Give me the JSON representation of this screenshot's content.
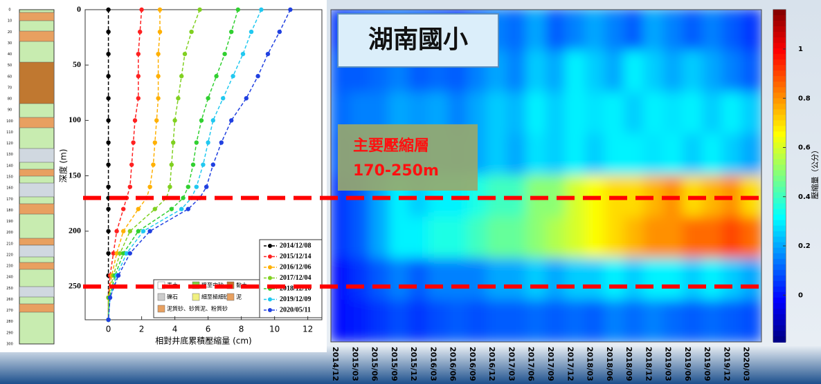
{
  "chart_data": [
    {
      "type": "line",
      "y": [
        0,
        20,
        40,
        60,
        80,
        100,
        120,
        140,
        160,
        170,
        180,
        200,
        220,
        240,
        260,
        280
      ],
      "series": [
        {
          "name": "2014/12/08",
          "color": "#000000",
          "values": [
            0,
            0,
            0,
            0,
            0,
            0,
            0,
            0,
            0,
            0,
            0,
            0,
            0,
            0,
            0,
            0
          ]
        },
        {
          "name": "2015/12/14",
          "color": "#ff2020",
          "values": [
            2.0,
            1.9,
            1.8,
            1.8,
            1.8,
            1.6,
            1.5,
            1.4,
            1.3,
            1.1,
            0.9,
            0.5,
            0.3,
            0.1,
            0,
            0
          ]
        },
        {
          "name": "2016/12/06",
          "color": "#ffb000",
          "values": [
            3.1,
            3.1,
            3.0,
            3.0,
            3.0,
            2.9,
            2.8,
            2.7,
            2.5,
            2.3,
            1.8,
            0.9,
            0.5,
            0.2,
            0,
            0
          ]
        },
        {
          "name": "2017/12/04",
          "color": "#80d020",
          "values": [
            5.5,
            5.0,
            4.6,
            4.4,
            4.2,
            4.0,
            3.9,
            3.8,
            3.7,
            3.5,
            2.8,
            1.3,
            0.7,
            0.3,
            0,
            0
          ]
        },
        {
          "name": "2018/12/10",
          "color": "#30d030",
          "values": [
            7.8,
            7.4,
            7.0,
            6.5,
            6.0,
            5.6,
            5.3,
            5.1,
            4.8,
            4.5,
            3.8,
            1.8,
            0.9,
            0.4,
            0.05,
            0
          ]
        },
        {
          "name": "2019/12/09",
          "color": "#20c8f0",
          "values": [
            9.2,
            8.6,
            8.1,
            7.5,
            6.9,
            6.3,
            6.0,
            5.7,
            5.3,
            5.0,
            4.4,
            2.1,
            1.1,
            0.5,
            0.1,
            0
          ]
        },
        {
          "name": "2020/05/11",
          "color": "#2040e0",
          "values": [
            10.95,
            10.3,
            9.6,
            9.0,
            8.3,
            7.4,
            6.8,
            6.3,
            5.9,
            5.5,
            4.8,
            2.5,
            1.3,
            0.6,
            0.1,
            0
          ]
        }
      ],
      "xlim": [
        -1.4,
        12.85
      ],
      "xticks": [
        0,
        2,
        4,
        6,
        8,
        10,
        12
      ],
      "ylim": [
        0,
        280
      ],
      "yticks": [
        0,
        50,
        100,
        150,
        200,
        250
      ],
      "y_inverted": true,
      "xlabel": "相對井底累積壓縮量 (cm)",
      "ylabel": "深度 (m)",
      "legend": "lower right"
    },
    {
      "type": "heatmap",
      "title": "湖南國小",
      "colormap": "jet",
      "x": [
        "2014/12",
        "2015/03",
        "2015/06",
        "2015/09",
        "2015/12",
        "2016/03",
        "2016/06",
        "2016/09",
        "2016/12",
        "2017/03",
        "2017/06",
        "2017/09",
        "2017/12",
        "2018/03",
        "2018/06",
        "2018/09",
        "2018/12",
        "2019/03",
        "2019/06",
        "2019/09",
        "2019/12",
        "2020/03"
      ],
      "ylim": [
        0,
        300
      ],
      "values": [
        [
          0.05,
          0.08,
          0.1,
          0.12,
          0.1,
          0.08,
          0.05,
          0.1,
          0.15,
          0.12,
          0.2,
          0.1,
          0.15,
          0.2,
          0.15,
          0.1,
          0.2,
          0.15,
          0.1,
          0.15,
          0.1,
          0.05
        ],
        [
          0.1,
          0.1,
          0.12,
          0.15,
          0.1,
          0.12,
          0.1,
          0.15,
          0.2,
          0.15,
          0.25,
          0.2,
          0.3,
          0.25,
          0.2,
          0.3,
          0.25,
          0.2,
          0.25,
          0.2,
          0.15,
          0.1
        ],
        [
          0.12,
          0.15,
          0.15,
          0.2,
          0.18,
          0.2,
          0.15,
          0.2,
          0.25,
          0.22,
          0.3,
          0.25,
          0.3,
          0.28,
          0.3,
          0.25,
          0.3,
          0.28,
          0.3,
          0.25,
          0.3,
          0.25
        ],
        [
          0.1,
          0.12,
          0.15,
          0.2,
          0.15,
          0.2,
          0.18,
          0.2,
          0.25,
          0.2,
          0.28,
          0.25,
          0.3,
          0.25,
          0.3,
          0.3,
          0.28,
          0.3,
          0.25,
          0.3,
          0.25,
          0.2
        ],
        [
          0.05,
          0.1,
          0.2,
          0.3,
          0.25,
          0.3,
          0.3,
          0.35,
          0.4,
          0.4,
          0.5,
          0.5,
          0.6,
          0.65,
          0.7,
          0.7,
          0.75,
          0.8,
          0.7,
          0.75,
          0.8,
          0.7
        ],
        [
          0.05,
          0.1,
          0.2,
          0.3,
          0.3,
          0.35,
          0.35,
          0.4,
          0.45,
          0.45,
          0.5,
          0.55,
          0.6,
          0.65,
          0.7,
          0.75,
          0.8,
          0.8,
          0.85,
          0.85,
          0.9,
          0.85
        ],
        [
          0,
          0.05,
          0.1,
          0.15,
          0.1,
          0.15,
          0.15,
          0.15,
          0.2,
          0.2,
          0.25,
          0.2,
          0.25,
          0.25,
          0.3,
          0.25,
          0.3,
          0.3,
          0.25,
          0.3,
          0.25,
          0.2
        ],
        [
          0,
          0.02,
          0.05,
          0.08,
          0.05,
          0.08,
          0.1,
          0.08,
          0.1,
          0.1,
          0.12,
          0.1,
          0.12,
          0.1,
          0.15,
          0.12,
          0.15,
          0.12,
          0.1,
          0.12,
          0.1,
          0.08
        ]
      ],
      "clim": [
        -0.19,
        1.16
      ],
      "cticks": [
        0,
        0.2,
        0.4,
        0.6,
        0.8,
        1
      ],
      "colorbar_label": "壓縮量（公分）",
      "hlines": [
        170,
        250
      ],
      "hline_color": "#ff0000",
      "annotation": [
        "主要壓縮層",
        "170-250m"
      ]
    }
  ],
  "lithology": {
    "depth_labels": [
      0,
      10,
      20,
      30,
      40,
      50,
      60,
      70,
      80,
      90,
      100,
      110,
      120,
      130,
      140,
      150,
      160,
      170,
      180,
      190,
      200,
      210,
      220,
      230,
      240,
      250,
      260,
      270,
      280,
      290,
      300
    ],
    "legend": [
      "表土",
      "粗至中砂",
      "黏土",
      "礫石",
      "細至極細砂",
      "泥",
      "泥質砂、砂質泥、粉質砂"
    ]
  }
}
